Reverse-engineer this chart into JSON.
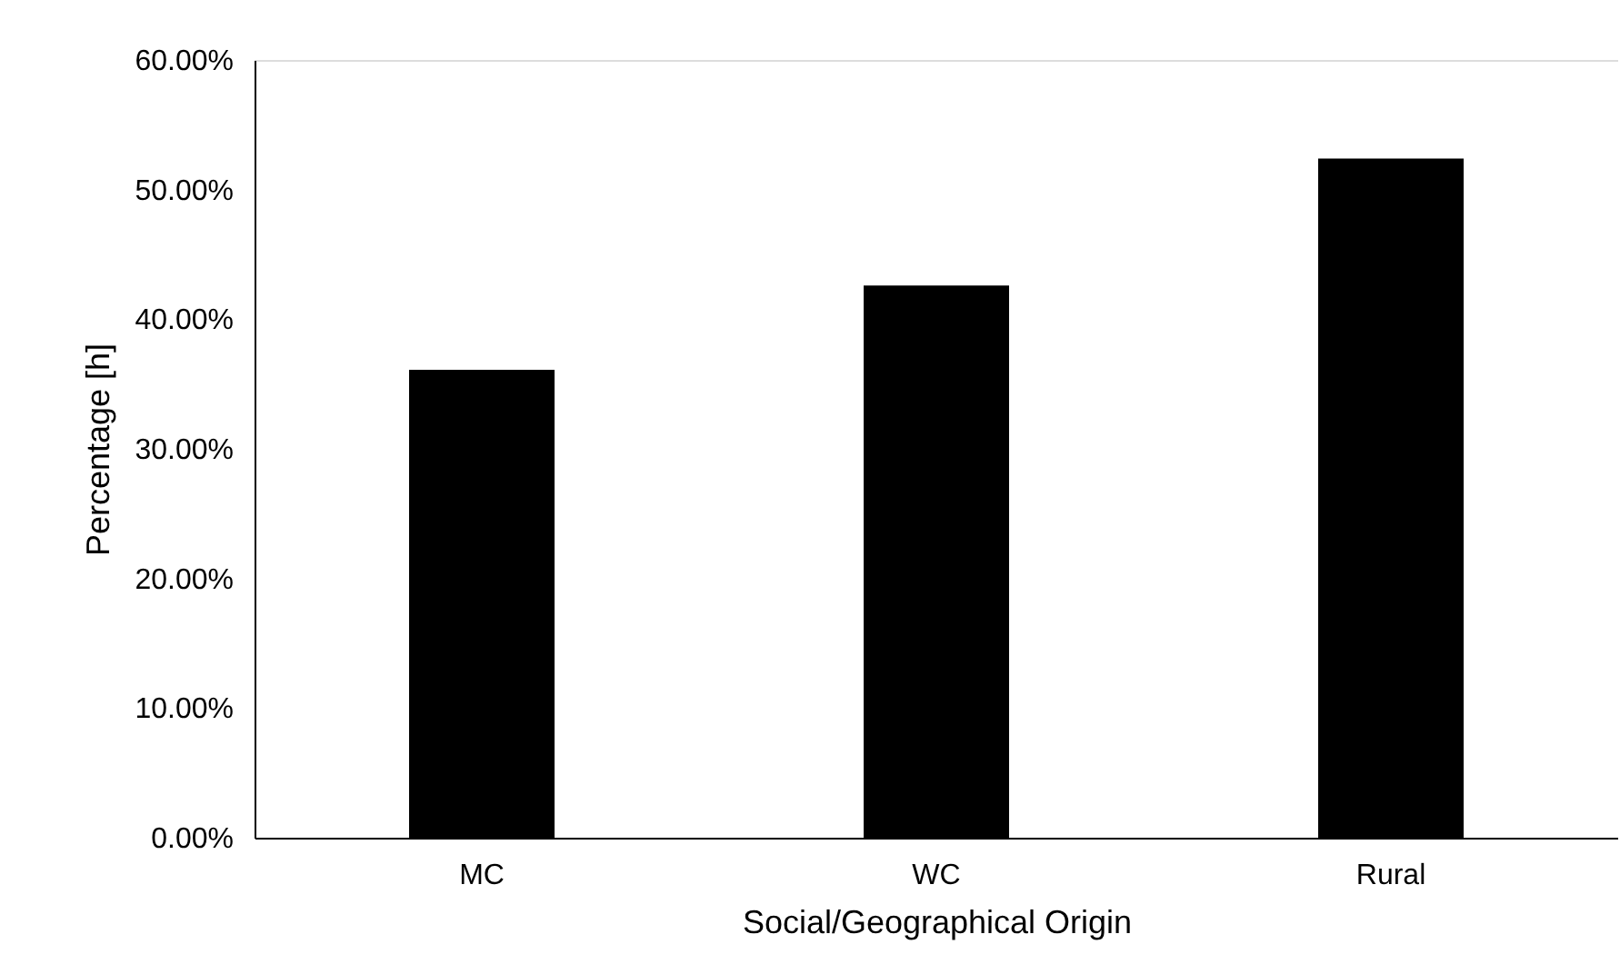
{
  "chart_data": {
    "type": "bar",
    "xlabel": "Social/Geographical Origin",
    "ylabel": "Percentage [h]",
    "categories": [
      "MC",
      "WC",
      "Rural"
    ],
    "series": [
      {
        "color": "#000000",
        "values": [
          36.1,
          42.6,
          52.4
        ]
      }
    ],
    "ylim": [
      0,
      60
    ],
    "yticks": [
      {
        "value": 0,
        "label": "0.00%"
      },
      {
        "value": 10,
        "label": "10.00%"
      },
      {
        "value": 20,
        "label": "20.00%"
      },
      {
        "value": 30,
        "label": "30.00%"
      },
      {
        "value": 40,
        "label": "40.00%"
      },
      {
        "value": 50,
        "label": "50.00%"
      },
      {
        "value": 60,
        "label": "60.00%"
      }
    ],
    "grid": false
  }
}
